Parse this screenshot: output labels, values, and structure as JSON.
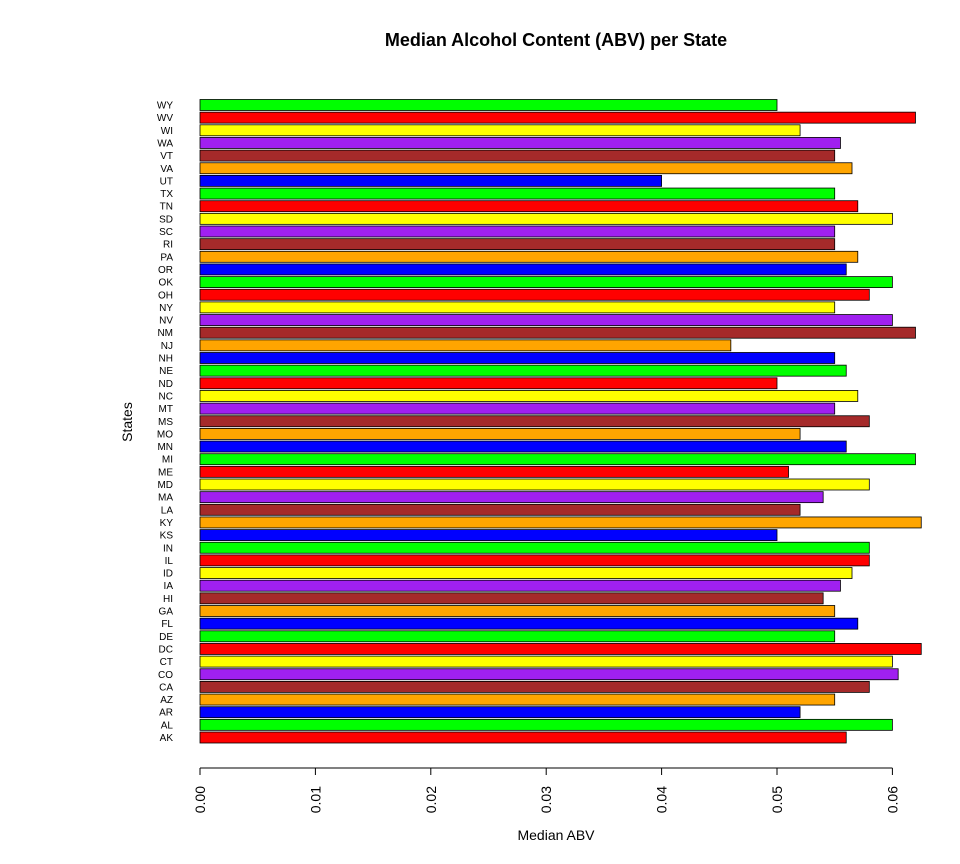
{
  "chart_data": {
    "type": "bar",
    "orientation": "horizontal",
    "title": "Median Alcohol Content (ABV) per State",
    "xlabel": "Median ABV",
    "ylabel": "States",
    "xlim": [
      0,
      0.0625
    ],
    "xticks": [
      "0.00",
      "0.01",
      "0.02",
      "0.03",
      "0.04",
      "0.05",
      "0.06"
    ],
    "categories": [
      "AK",
      "AL",
      "AR",
      "AZ",
      "CA",
      "CO",
      "CT",
      "DC",
      "DE",
      "FL",
      "GA",
      "HI",
      "IA",
      "ID",
      "IL",
      "IN",
      "KS",
      "KY",
      "LA",
      "MA",
      "MD",
      "ME",
      "MI",
      "MN",
      "MO",
      "MS",
      "MT",
      "NC",
      "ND",
      "NE",
      "NH",
      "NJ",
      "NM",
      "NV",
      "NY",
      "OH",
      "OK",
      "OR",
      "PA",
      "RI",
      "SC",
      "SD",
      "TN",
      "TX",
      "UT",
      "VA",
      "VT",
      "WA",
      "WI",
      "WV",
      "WY"
    ],
    "values": [
      0.056,
      0.06,
      0.052,
      0.055,
      0.058,
      0.0605,
      0.06,
      0.0625,
      0.055,
      0.057,
      0.055,
      0.054,
      0.0555,
      0.0565,
      0.058,
      0.058,
      0.05,
      0.0625,
      0.052,
      0.054,
      0.058,
      0.051,
      0.062,
      0.056,
      0.052,
      0.058,
      0.055,
      0.057,
      0.05,
      0.056,
      0.055,
      0.046,
      0.062,
      0.06,
      0.055,
      0.058,
      0.06,
      0.056,
      0.057,
      0.055,
      0.055,
      0.06,
      0.057,
      0.055,
      0.04,
      0.0565,
      0.055,
      0.0555,
      0.052,
      0.062,
      0.05
    ],
    "colors": [
      "#ff0000",
      "#00ff00",
      "#0000ff",
      "#ffa500",
      "#a52a2a",
      "#a020f0",
      "#ffff00"
    ],
    "grid": false,
    "legend": "none"
  }
}
